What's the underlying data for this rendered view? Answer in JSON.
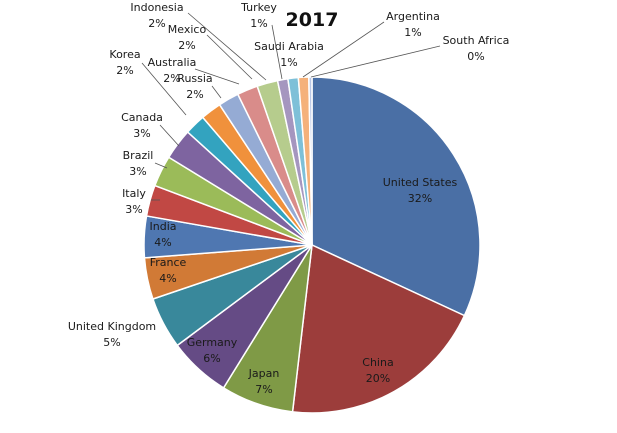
{
  "chart_data": {
    "type": "pie",
    "title": "2017",
    "slices": [
      {
        "name": "United States",
        "label": "32%",
        "value": 32,
        "color": "#4a6fa5"
      },
      {
        "name": "China",
        "label": "20%",
        "value": 20,
        "color": "#9c3d3b"
      },
      {
        "name": "Japan",
        "label": "7%",
        "value": 7,
        "color": "#7f9a46"
      },
      {
        "name": "Germany",
        "label": "6%",
        "value": 6,
        "color": "#654b85"
      },
      {
        "name": "United Kingdom",
        "label": "5%",
        "value": 5,
        "color": "#39889b"
      },
      {
        "name": "France",
        "label": "4%",
        "value": 4,
        "color": "#d17a36"
      },
      {
        "name": "India",
        "label": "4%",
        "value": 4,
        "color": "#4f77b1"
      },
      {
        "name": "Italy",
        "label": "3%",
        "value": 3,
        "color": "#c14844"
      },
      {
        "name": "Brazil",
        "label": "3%",
        "value": 3,
        "color": "#9bbb59"
      },
      {
        "name": "Canada",
        "label": "3%",
        "value": 3,
        "color": "#7e64a0"
      },
      {
        "name": "Korea",
        "label": "2%",
        "value": 2,
        "color": "#33a3bf"
      },
      {
        "name": "Russia",
        "label": "2%",
        "value": 2,
        "color": "#f0913c"
      },
      {
        "name": "Australia",
        "label": "2%",
        "value": 2,
        "color": "#95abd4"
      },
      {
        "name": "Mexico",
        "label": "2%",
        "value": 2,
        "color": "#d98c8a"
      },
      {
        "name": "Indonesia",
        "label": "2%",
        "value": 2,
        "color": "#b6cc8d"
      },
      {
        "name": "Turkey",
        "label": "1%",
        "value": 1,
        "color": "#a596bf"
      },
      {
        "name": "Saudi Arabia",
        "label": "1%",
        "value": 1,
        "color": "#7ec0d8"
      },
      {
        "name": "Argentina",
        "label": "1%",
        "value": 1,
        "color": "#f5b17a"
      },
      {
        "name": "South Africa",
        "label": "0%",
        "value": 0.3,
        "color": "#b9c7e6"
      }
    ]
  }
}
